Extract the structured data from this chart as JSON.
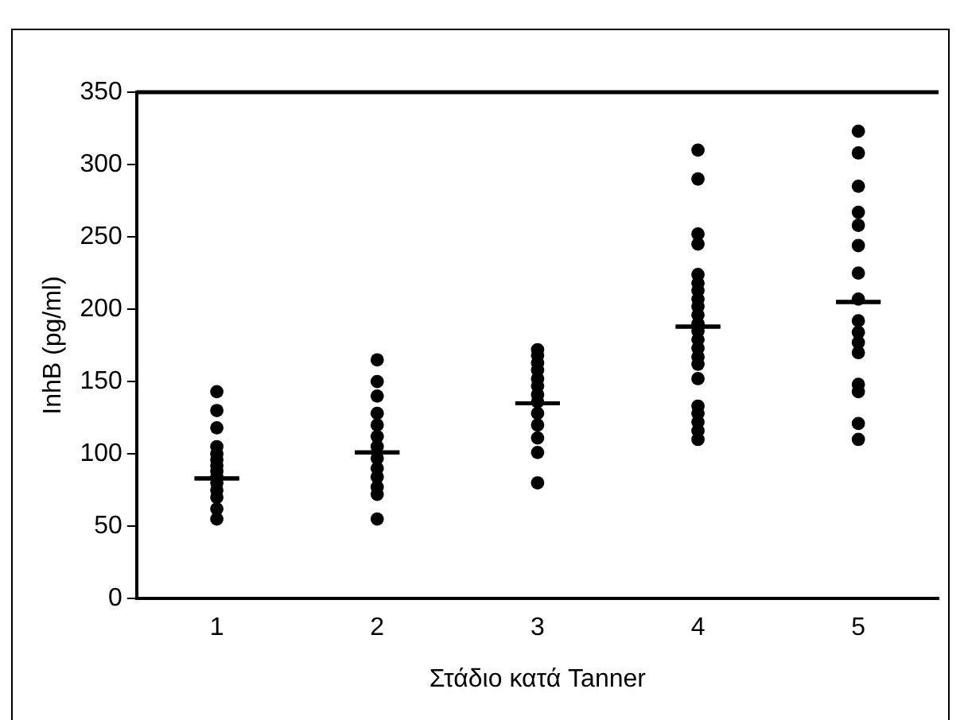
{
  "chart_data": {
    "type": "scatter",
    "xlabel": "Στάδιο κατά Tanner",
    "ylabel": "InhB (pg/ml)",
    "categories": [
      "1",
      "2",
      "3",
      "4",
      "5"
    ],
    "ylim": [
      0,
      350
    ],
    "yticks": [
      0,
      50,
      100,
      150,
      200,
      250,
      300,
      350
    ],
    "grid": false,
    "legend": false,
    "series": [
      {
        "color": "#000000",
        "marker": "circle",
        "x": [
          "1",
          "1",
          "1",
          "1",
          "1",
          "1",
          "1",
          "1",
          "1",
          "1",
          "1",
          "1",
          "1",
          "1",
          "2",
          "2",
          "2",
          "2",
          "2",
          "2",
          "2",
          "2",
          "2",
          "2",
          "2",
          "2",
          "2",
          "3",
          "3",
          "3",
          "3",
          "3",
          "3",
          "3",
          "3",
          "3",
          "3",
          "3",
          "3",
          "3",
          "4",
          "4",
          "4",
          "4",
          "4",
          "4",
          "4",
          "4",
          "4",
          "4",
          "4",
          "4",
          "4",
          "4",
          "4",
          "4",
          "4",
          "4",
          "4",
          "4",
          "4",
          "4",
          "5",
          "5",
          "5",
          "5",
          "5",
          "5",
          "5",
          "5",
          "5",
          "5",
          "5",
          "5",
          "5",
          "5",
          "5",
          "5"
        ],
        "values": [
          143,
          130,
          118,
          105,
          100,
          96,
          92,
          88,
          84,
          80,
          75,
          70,
          62,
          55,
          165,
          150,
          140,
          128,
          120,
          112,
          105,
          97,
          90,
          84,
          77,
          72,
          55,
          172,
          168,
          163,
          158,
          152,
          147,
          141,
          136,
          128,
          120,
          111,
          101,
          80,
          310,
          290,
          252,
          245,
          224,
          218,
          213,
          207,
          202,
          196,
          190,
          185,
          179,
          173,
          167,
          162,
          152,
          133,
          128,
          122,
          116,
          110,
          323,
          308,
          285,
          267,
          258,
          244,
          225,
          207,
          192,
          184,
          177,
          170,
          148,
          143,
          121,
          110
        ]
      },
      {
        "type": "box",
        "color": "#000000",
        "boxes": [
          {
            "low": 83,
            "q1": 83,
            "median": 83,
            "q3": 83,
            "high": 83
          },
          {
            "low": 101,
            "q1": 101,
            "median": 101,
            "q3": 101,
            "high": 101
          },
          {
            "low": 135,
            "q1": 135,
            "median": 135,
            "q3": 135,
            "high": 135
          },
          {
            "low": 188,
            "q1": 188,
            "median": 188,
            "q3": 188,
            "high": 188
          },
          {
            "low": 205,
            "q1": 205,
            "median": 205,
            "q3": 205,
            "high": 205
          }
        ]
      }
    ]
  }
}
